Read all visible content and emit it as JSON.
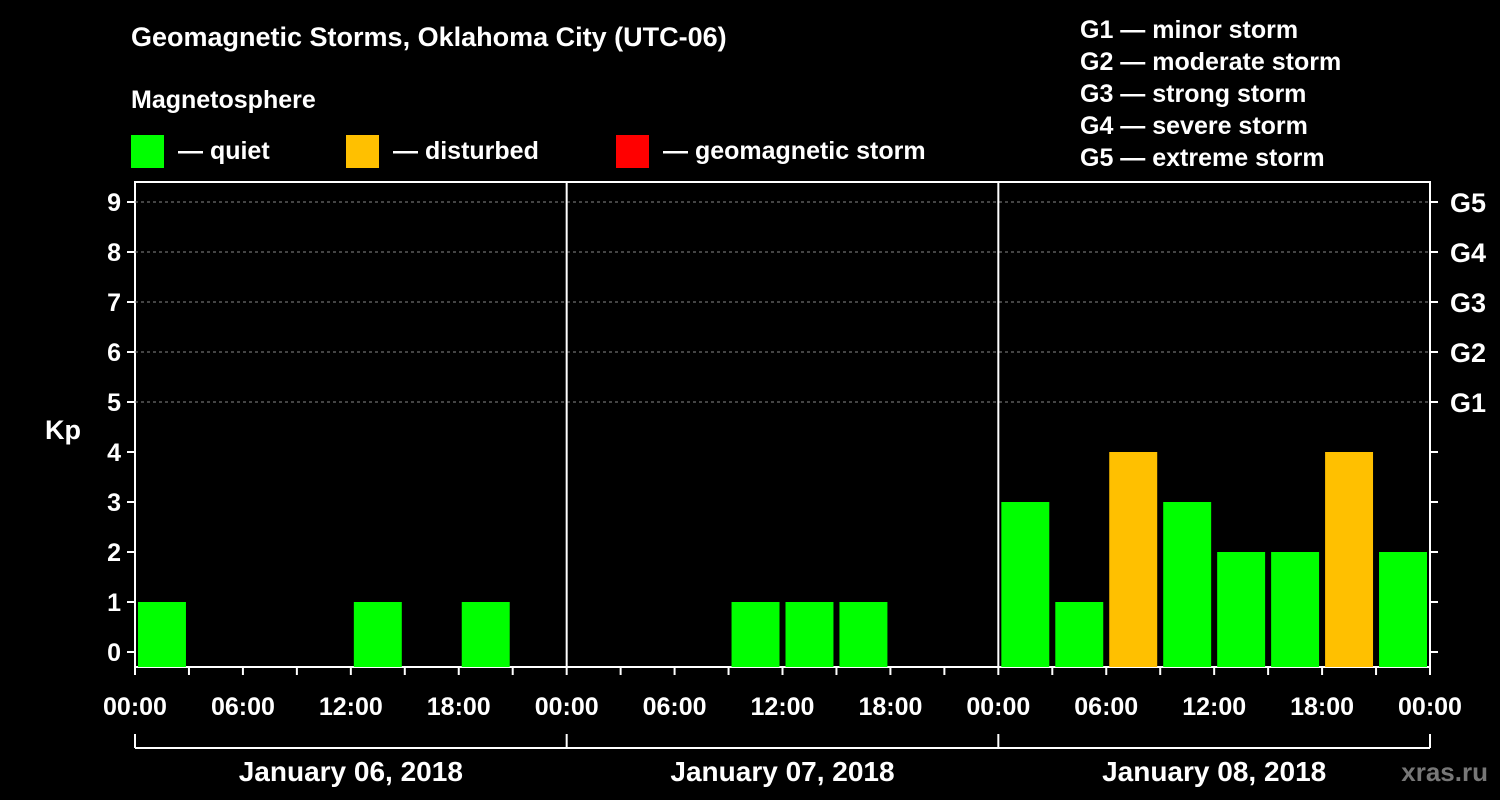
{
  "title": "Geomagnetic Storms, Oklahoma City (UTC-06)",
  "subtitle": "Magnetosphere",
  "legend": [
    {
      "label": "— quiet",
      "color": "#00ff00"
    },
    {
      "label": "— disturbed",
      "color": "#ffc000"
    },
    {
      "label": "— geomagnetic storm",
      "color": "#ff0000"
    }
  ],
  "storm_levels": [
    {
      "text": "G1 — minor storm"
    },
    {
      "text": "G2 — moderate storm"
    },
    {
      "text": "G3 — strong storm"
    },
    {
      "text": "G4 — severe storm"
    },
    {
      "text": "G5 — extreme storm"
    }
  ],
  "watermark": "xras.ru",
  "chart_data": {
    "type": "bar",
    "ylabel": "Kp",
    "ylim": [
      0,
      9
    ],
    "yticks": [
      "0",
      "1",
      "2",
      "3",
      "4",
      "5",
      "6",
      "7",
      "8",
      "9"
    ],
    "right_axis": [
      {
        "kp": 5,
        "label": "G1"
      },
      {
        "kp": 6,
        "label": "G2"
      },
      {
        "kp": 7,
        "label": "G3"
      },
      {
        "kp": 8,
        "label": "G4"
      },
      {
        "kp": 9,
        "label": "G5"
      }
    ],
    "grid": "dashed horizontal at Kp 5-9",
    "days": [
      "January 06, 2018",
      "January 07, 2018",
      "January 08, 2018"
    ],
    "xticks": [
      "00:00",
      "06:00",
      "12:00",
      "18:00",
      "00:00",
      "06:00",
      "12:00",
      "18:00",
      "00:00",
      "06:00",
      "12:00",
      "18:00",
      "00:00"
    ],
    "interval_hours": 3,
    "bars": [
      {
        "start": "2018-01-06 00:00",
        "kp": 1,
        "level": "quiet"
      },
      {
        "start": "2018-01-06 12:00",
        "kp": 1,
        "level": "quiet"
      },
      {
        "start": "2018-01-06 18:00",
        "kp": 1,
        "level": "quiet"
      },
      {
        "start": "2018-01-07 09:00",
        "kp": 1,
        "level": "quiet"
      },
      {
        "start": "2018-01-07 12:00",
        "kp": 1,
        "level": "quiet"
      },
      {
        "start": "2018-01-07 15:00",
        "kp": 1,
        "level": "quiet"
      },
      {
        "start": "2018-01-08 00:00",
        "kp": 3,
        "level": "quiet"
      },
      {
        "start": "2018-01-08 03:00",
        "kp": 1,
        "level": "quiet"
      },
      {
        "start": "2018-01-08 06:00",
        "kp": 4,
        "level": "disturbed"
      },
      {
        "start": "2018-01-08 09:00",
        "kp": 3,
        "level": "quiet"
      },
      {
        "start": "2018-01-08 12:00",
        "kp": 2,
        "level": "quiet"
      },
      {
        "start": "2018-01-08 15:00",
        "kp": 2,
        "level": "quiet"
      },
      {
        "start": "2018-01-08 18:00",
        "kp": 4,
        "level": "disturbed"
      },
      {
        "start": "2018-01-08 21:00",
        "kp": 2,
        "level": "quiet"
      }
    ],
    "level_colors": {
      "quiet": "#00ff00",
      "disturbed": "#ffc000",
      "storm": "#ff0000"
    }
  }
}
